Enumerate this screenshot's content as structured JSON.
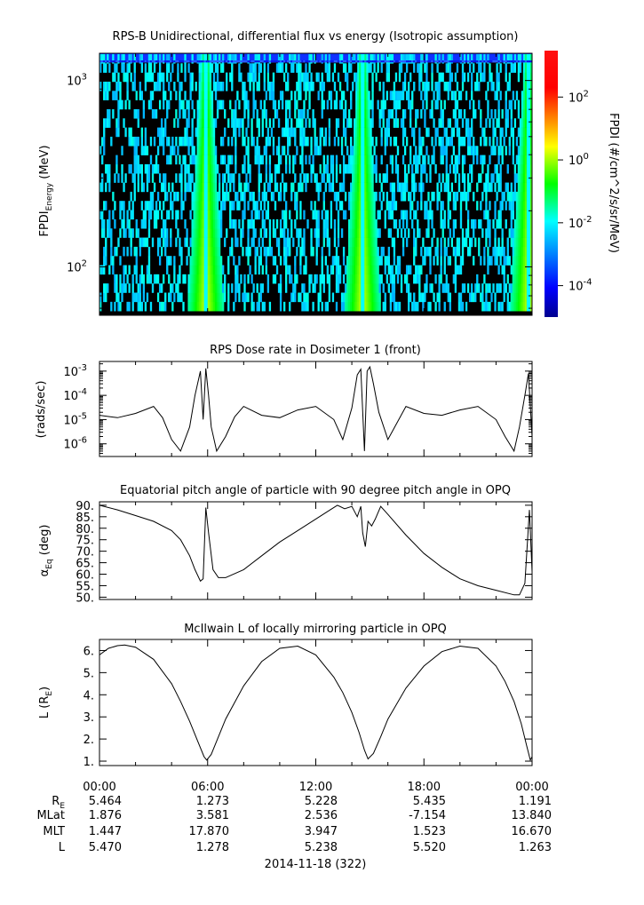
{
  "chart_data": [
    {
      "type": "heatmap",
      "title": "RPS-B  Unidirectional, differential flux vs energy (Isotropic assumption)",
      "ylabel_main": "FPDI",
      "ylabel_sub": "Energy",
      "ylabel_unit": " (MeV)",
      "yscale": "log",
      "ylim": [
        55,
        1400
      ],
      "yticks": [
        {
          "value": 100,
          "label": "10",
          "exp": "2"
        },
        {
          "value": 1000,
          "label": "10",
          "exp": "3"
        }
      ],
      "colorbar": {
        "label": "FPDI (#/cm^2/s/sr/MeV)",
        "scale": "log",
        "range": [
          1e-05,
          3000
        ],
        "ticks": [
          {
            "value": 0.0001,
            "label": "10",
            "exp": "-4"
          },
          {
            "value": 0.01,
            "label": "10",
            "exp": "-2"
          },
          {
            "value": 1,
            "label": "10",
            "exp": "0"
          },
          {
            "value": 100,
            "label": "10",
            "exp": "2"
          }
        ]
      },
      "belt_peaks_hours": [
        5.9,
        14.6,
        23.8
      ]
    },
    {
      "type": "line",
      "title": "RPS  Dose rate in Dosimeter 1 (front)",
      "ylabel": "(rads/sec)",
      "yscale": "log",
      "ylim": [
        3e-07,
        0.0025
      ],
      "yticks": [
        {
          "value": 1e-06,
          "label": "10",
          "exp": "-6"
        },
        {
          "value": 1e-05,
          "label": "10",
          "exp": "-5"
        },
        {
          "value": 0.0001,
          "label": "10",
          "exp": "-4"
        },
        {
          "value": 0.001,
          "label": "10",
          "exp": "-3"
        }
      ],
      "x_hours": [
        0,
        1,
        2,
        3,
        3.5,
        4,
        4.5,
        5,
        5.3,
        5.6,
        5.75,
        5.9,
        6.05,
        6.2,
        6.5,
        7,
        7.5,
        8,
        9,
        10,
        11,
        12,
        13,
        13.5,
        14,
        14.3,
        14.5,
        14.7,
        14.85,
        15,
        15.2,
        15.5,
        16,
        17,
        18,
        19,
        20,
        21,
        22,
        22.5,
        23,
        23.3,
        23.6,
        23.8,
        24
      ],
      "values": [
        1.5e-05,
        1.2e-05,
        1.8e-05,
        3.5e-05,
        1.2e-05,
        1.5e-06,
        5e-07,
        5e-06,
        0.0001,
        0.001,
        1e-05,
        0.0013,
        0.0001,
        5e-06,
        5e-07,
        2e-06,
        1.3e-05,
        3.5e-05,
        1.5e-05,
        1.2e-05,
        2.5e-05,
        3.5e-05,
        1e-05,
        1.5e-06,
        3e-05,
        0.0007,
        0.0012,
        5e-07,
        0.001,
        0.0015,
        0.0003,
        2e-05,
        1.5e-06,
        3.5e-05,
        1.8e-05,
        1.5e-05,
        2.5e-05,
        3.5e-05,
        1e-05,
        2e-06,
        5e-07,
        5e-06,
        0.0001,
        0.0008,
        2e-06
      ]
    },
    {
      "type": "line",
      "title": "Equatorial pitch angle of particle with 90 degree pitch angle in OPQ",
      "ylabel_main": "α",
      "ylabel_sub": "Eq",
      "ylabel_unit": " (deg)",
      "ylim": [
        49,
        91.5
      ],
      "yticks": [
        {
          "value": 50,
          "label": "50."
        },
        {
          "value": 55,
          "label": "55."
        },
        {
          "value": 60,
          "label": "60."
        },
        {
          "value": 65,
          "label": "65."
        },
        {
          "value": 70,
          "label": "70."
        },
        {
          "value": 75,
          "label": "75."
        },
        {
          "value": 80,
          "label": "80."
        },
        {
          "value": 85,
          "label": "85."
        },
        {
          "value": 90,
          "label": "90."
        }
      ],
      "x_hours": [
        0,
        1,
        2,
        3,
        4,
        4.5,
        5,
        5.3,
        5.6,
        5.75,
        5.9,
        6.05,
        6.3,
        6.6,
        7,
        8,
        9,
        10,
        11,
        12,
        12.8,
        13.2,
        13.6,
        14,
        14.3,
        14.5,
        14.6,
        14.75,
        14.9,
        15.1,
        15.3,
        15.6,
        16,
        17,
        18,
        19,
        20,
        21,
        22,
        23,
        23.3,
        23.6,
        23.85,
        24
      ],
      "values": [
        90,
        88,
        85.5,
        83,
        79,
        75,
        68,
        62,
        57,
        58,
        89,
        78,
        62,
        58.5,
        58.5,
        62,
        68,
        74,
        79,
        84,
        88,
        90,
        88.5,
        89.5,
        85,
        89.5,
        78,
        72,
        83,
        81,
        84,
        89.5,
        86,
        77,
        69,
        63,
        58,
        55,
        53,
        51,
        51,
        56,
        88,
        61
      ]
    },
    {
      "type": "line",
      "title": "McIlwain L of locally mirroring particle in OPQ",
      "ylabel_main": "L (R",
      "ylabel_sub": "E",
      "ylabel_unit": ")",
      "ylim": [
        0.8,
        6.5
      ],
      "yticks": [
        {
          "value": 1,
          "label": "1."
        },
        {
          "value": 2,
          "label": "2."
        },
        {
          "value": 3,
          "label": "3."
        },
        {
          "value": 4,
          "label": "4."
        },
        {
          "value": 5,
          "label": "5."
        },
        {
          "value": 6,
          "label": "6."
        }
      ],
      "x_hours": [
        0,
        0.5,
        1,
        1.4,
        2,
        3,
        4,
        4.5,
        5,
        5.5,
        5.8,
        5.95,
        6.2,
        6.6,
        7,
        8,
        9,
        10,
        11,
        12,
        13,
        13.5,
        14,
        14.4,
        14.7,
        14.9,
        15.2,
        15.6,
        16,
        17,
        18,
        19,
        20,
        21,
        22,
        22.5,
        23,
        23.4,
        23.7,
        23.9,
        24
      ],
      "values": [
        5.8,
        6.1,
        6.22,
        6.25,
        6.15,
        5.6,
        4.5,
        3.7,
        2.8,
        1.8,
        1.2,
        1.05,
        1.3,
        2.1,
        2.9,
        4.4,
        5.5,
        6.1,
        6.2,
        5.8,
        4.8,
        4.1,
        3.2,
        2.3,
        1.5,
        1.1,
        1.35,
        2.1,
        2.9,
        4.3,
        5.3,
        5.95,
        6.2,
        6.1,
        5.3,
        4.6,
        3.7,
        2.7,
        1.7,
        1.05,
        1.2
      ]
    }
  ],
  "xaxis": {
    "tick_labels": [
      "00:00",
      "06:00",
      "12:00",
      "18:00",
      "00:00"
    ],
    "date_label": "2014-11-18 (322)"
  },
  "ephemeris": [
    {
      "label_main": "R",
      "label_sub": "E",
      "values": [
        "5.464",
        "1.273",
        "5.228",
        "5.435",
        "1.191"
      ]
    },
    {
      "label_main": "MLat",
      "label_sub": "",
      "values": [
        "1.876",
        "3.581",
        "2.536",
        "-7.154",
        "13.840"
      ]
    },
    {
      "label_main": "MLT",
      "label_sub": "",
      "values": [
        "1.447",
        "17.870",
        "3.947",
        "1.523",
        "16.670"
      ]
    },
    {
      "label_main": "L",
      "label_sub": "",
      "values": [
        "5.470",
        "1.278",
        "5.238",
        "5.520",
        "1.263"
      ]
    }
  ],
  "colors": {
    "line": "#000000",
    "background": "#000000"
  }
}
